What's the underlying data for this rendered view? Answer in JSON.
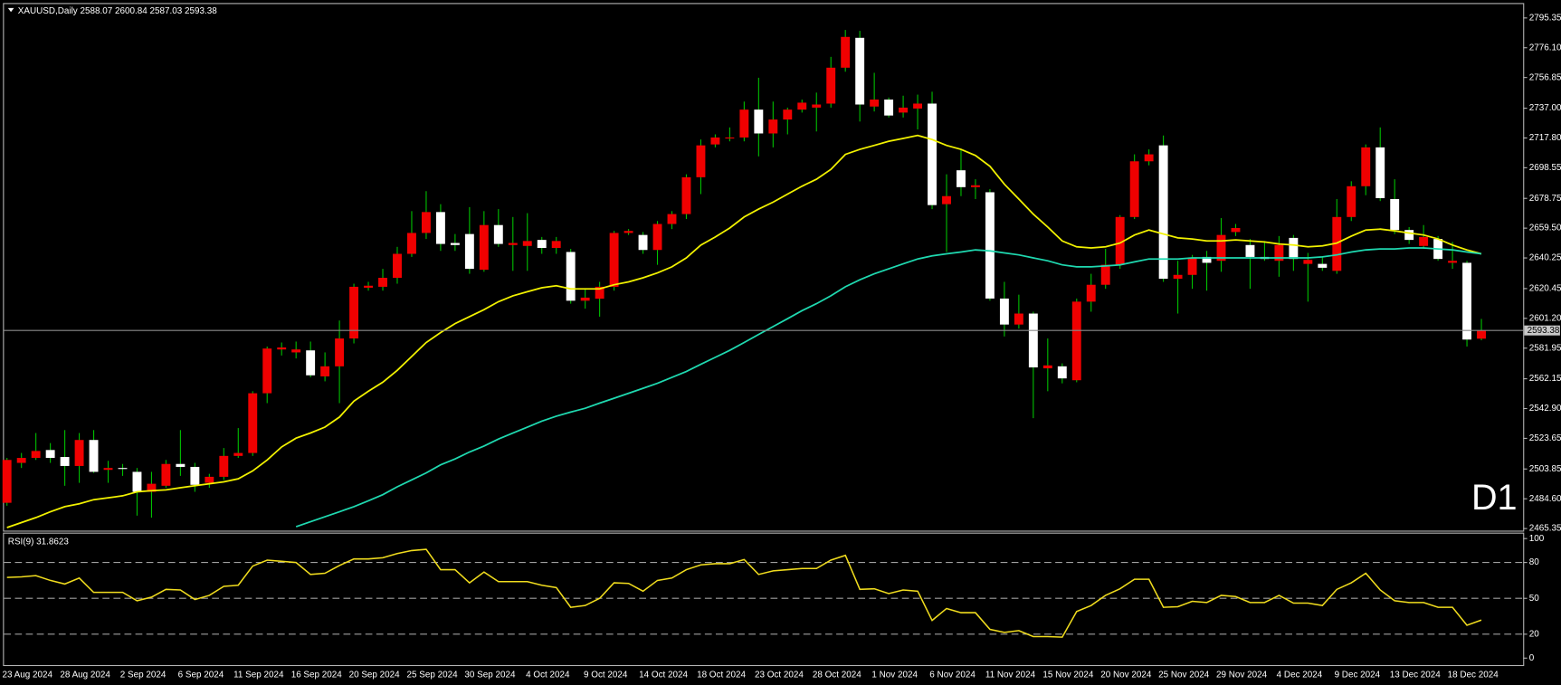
{
  "chart_data": [
    {
      "type": "candlestick",
      "title": "XAUUSD,Daily",
      "timeframe_label": "D1",
      "categories": [
        null,
        "23 Aug 2024",
        null,
        null,
        null,
        "28 Aug 2024",
        null,
        null,
        null,
        "2 Sep 2024",
        null,
        null,
        null,
        "6 Sep 2024",
        null,
        null,
        null,
        "11 Sep 2024",
        null,
        null,
        null,
        "16 Sep 2024",
        null,
        null,
        null,
        "20 Sep 2024",
        null,
        null,
        null,
        "25 Sep 2024",
        null,
        null,
        null,
        "30 Sep 2024",
        null,
        null,
        null,
        "4 Oct 2024",
        null,
        null,
        null,
        "9 Oct 2024",
        null,
        null,
        null,
        "14 Oct 2024",
        null,
        null,
        null,
        "18 Oct 2024",
        null,
        null,
        null,
        "23 Oct 2024",
        null,
        null,
        null,
        "28 Oct 2024",
        null,
        null,
        null,
        "1 Nov 2024",
        null,
        null,
        null,
        "6 Nov 2024",
        null,
        null,
        null,
        "11 Nov 2024",
        null,
        null,
        null,
        "15 Nov 2024",
        null,
        null,
        null,
        "20 Nov 2024",
        null,
        null,
        null,
        "25 Nov 2024",
        null,
        null,
        null,
        "29 Nov 2024",
        null,
        null,
        null,
        "4 Dec 2024",
        null,
        null,
        null,
        "9 Dec 2024",
        null,
        null,
        null,
        "13 Dec 2024",
        null,
        null,
        null,
        "18 Dec 2024",
        null
      ],
      "open": [
        2482.0,
        2507.8,
        2511.0,
        2516.1,
        2511.6,
        2505.8,
        2522.6,
        2503.3,
        2504.5,
        2502.0,
        2489.1,
        2493.0,
        2507.1,
        2505.2,
        2494.9,
        2498.8,
        2512.3,
        2514.2,
        2552.8,
        2581.1,
        2579.2,
        2580.5,
        2563.7,
        2570.2,
        2588.2,
        2621.0,
        2621.6,
        2627.4,
        2642.9,
        2656.4,
        2669.9,
        2649.9,
        2655.7,
        2632.6,
        2661.5,
        2648.6,
        2648.0,
        2651.9,
        2646.7,
        2644.1,
        2612.6,
        2613.9,
        2621.6,
        2656.4,
        2655.1,
        2645.4,
        2662.2,
        2668.6,
        2692.4,
        2713.6,
        2717.5,
        2718.1,
        2736.1,
        2720.7,
        2729.7,
        2736.1,
        2737.4,
        2740.0,
        2763.2,
        2782.5,
        2738.1,
        2742.6,
        2734.2,
        2736.8,
        2740.0,
        2675.0,
        2696.9,
        2686.0,
        2682.7,
        2614.0,
        2597.2,
        2604.3,
        2568.9,
        2570.2,
        2561.2,
        2612.0,
        2622.9,
        2635.8,
        2666.7,
        2702.7,
        2713.0,
        2626.8,
        2629.3,
        2640.9,
        2638.4,
        2657.0,
        2648.6,
        2640.9,
        2638.4,
        2653.2,
        2636.4,
        2636.4,
        2631.9,
        2666.7,
        2686.6,
        2711.7,
        2678.3,
        2658.3,
        2648.0,
        2652.5,
        2637.1,
        2637.1,
        2588.07
      ],
      "high": [
        2511.0,
        2514.2,
        2527.1,
        2520.6,
        2529.0,
        2527.1,
        2529.0,
        2509.1,
        2507.1,
        2504.5,
        2502.0,
        2509.7,
        2529.0,
        2507.8,
        2500.7,
        2517.4,
        2530.3,
        2554.1,
        2583.0,
        2585.6,
        2586.2,
        2586.2,
        2579.2,
        2599.8,
        2623.6,
        2624.8,
        2633.2,
        2647.4,
        2670.5,
        2683.4,
        2675.0,
        2655.7,
        2673.1,
        2670.5,
        2671.8,
        2666.7,
        2669.2,
        2653.8,
        2653.8,
        2646.1,
        2620.3,
        2624.8,
        2657.7,
        2658.9,
        2657.0,
        2664.1,
        2670.5,
        2694.3,
        2716.8,
        2720.1,
        2724.6,
        2741.3,
        2756.7,
        2741.3,
        2737.4,
        2742.6,
        2747.1,
        2770.2,
        2787.6,
        2787.0,
        2759.9,
        2743.9,
        2745.1,
        2745.8,
        2747.7,
        2694.3,
        2710.4,
        2691.1,
        2684.7,
        2624.8,
        2616.5,
        2605.5,
        2588.2,
        2572.1,
        2614.0,
        2630.0,
        2646.1,
        2667.9,
        2707.2,
        2710.4,
        2719.4,
        2638.4,
        2642.2,
        2644.8,
        2666.0,
        2662.2,
        2652.5,
        2651.2,
        2654.4,
        2655.1,
        2643.5,
        2640.9,
        2678.3,
        2689.8,
        2713.6,
        2724.6,
        2691.1,
        2660.2,
        2661.5,
        2654.4,
        2650.6,
        2638.4,
        2600.84
      ],
      "low": [
        2480.1,
        2504.5,
        2509.7,
        2507.8,
        2493.0,
        2494.9,
        2501.3,
        2494.9,
        2499.4,
        2473.7,
        2472.4,
        2491.7,
        2499.4,
        2489.1,
        2491.7,
        2496.8,
        2511.0,
        2512.3,
        2546.4,
        2577.2,
        2575.3,
        2563.1,
        2560.5,
        2546.4,
        2585.0,
        2619.1,
        2619.1,
        2623.6,
        2640.9,
        2652.5,
        2644.8,
        2644.8,
        2630.0,
        2631.3,
        2647.4,
        2631.9,
        2631.9,
        2642.9,
        2642.9,
        2610.7,
        2607.5,
        2602.3,
        2619.1,
        2655.1,
        2642.9,
        2635.8,
        2658.9,
        2665.4,
        2681.5,
        2711.7,
        2715.6,
        2715.6,
        2705.9,
        2711.7,
        2720.1,
        2734.2,
        2722.0,
        2737.4,
        2760.6,
        2728.4,
        2734.9,
        2731.0,
        2731.0,
        2723.3,
        2671.8,
        2644.1,
        2680.2,
        2678.3,
        2612.6,
        2589.5,
        2594.6,
        2536.7,
        2554.1,
        2559.2,
        2559.9,
        2605.5,
        2620.3,
        2633.2,
        2665.4,
        2700.1,
        2624.8,
        2604.3,
        2620.3,
        2619.1,
        2631.3,
        2654.4,
        2620.3,
        2638.4,
        2628.1,
        2631.9,
        2612.0,
        2631.9,
        2630.0,
        2664.1,
        2680.8,
        2677.0,
        2655.7,
        2649.3,
        2646.1,
        2638.4,
        2633.2,
        2583.0,
        2587.03
      ],
      "close": [
        2509.7,
        2511.0,
        2515.5,
        2511.0,
        2505.8,
        2522.6,
        2502.0,
        2504.5,
        2503.9,
        2489.1,
        2494.3,
        2507.1,
        2505.2,
        2493.6,
        2498.8,
        2512.3,
        2514.2,
        2552.8,
        2581.7,
        2582.4,
        2581.1,
        2564.4,
        2570.2,
        2588.2,
        2621.6,
        2622.3,
        2627.4,
        2642.9,
        2656.4,
        2669.9,
        2649.3,
        2648.6,
        2633.2,
        2661.5,
        2649.3,
        2649.9,
        2651.2,
        2646.7,
        2651.2,
        2612.6,
        2614.6,
        2621.6,
        2656.4,
        2657.7,
        2645.4,
        2662.2,
        2668.6,
        2692.4,
        2713.0,
        2718.1,
        2718.1,
        2736.1,
        2720.7,
        2729.7,
        2736.1,
        2740.6,
        2739.4,
        2763.2,
        2783.1,
        2739.4,
        2742.6,
        2732.3,
        2737.4,
        2740.0,
        2674.4,
        2680.2,
        2686.0,
        2687.2,
        2614.0,
        2597.2,
        2604.3,
        2569.5,
        2570.8,
        2562.4,
        2612.0,
        2622.9,
        2635.8,
        2666.7,
        2702.7,
        2707.2,
        2626.8,
        2629.3,
        2640.3,
        2637.1,
        2655.1,
        2659.6,
        2640.9,
        2639.6,
        2648.6,
        2639.6,
        2639.0,
        2633.9,
        2666.7,
        2686.6,
        2711.7,
        2678.9,
        2658.3,
        2651.9,
        2653.8,
        2639.6,
        2638.4,
        2587.5,
        2593.38
      ],
      "overlays": [
        {
          "color": "#f2f200",
          "values": [
            2466.0,
            2469.2,
            2472.4,
            2476.2,
            2479.5,
            2481.4,
            2484.0,
            2485.2,
            2486.5,
            2489.1,
            2489.8,
            2490.4,
            2491.7,
            2493.0,
            2494.3,
            2495.5,
            2497.5,
            2502.6,
            2509.7,
            2518.1,
            2523.8,
            2527.1,
            2530.9,
            2537.4,
            2547.7,
            2554.1,
            2559.9,
            2567.6,
            2576.6,
            2585.6,
            2592.0,
            2597.8,
            2602.3,
            2606.8,
            2612.0,
            2615.8,
            2618.4,
            2621.0,
            2622.3,
            2620.3,
            2620.3,
            2620.3,
            2622.9,
            2624.8,
            2627.4,
            2630.6,
            2634.5,
            2640.3,
            2648.6,
            2653.8,
            2659.6,
            2666.7,
            2671.8,
            2676.3,
            2681.5,
            2686.6,
            2691.1,
            2697.5,
            2707.2,
            2710.4,
            2713.0,
            2715.6,
            2717.5,
            2719.4,
            2716.8,
            2713.0,
            2710.4,
            2706.5,
            2699.5,
            2687.9,
            2678.3,
            2668.6,
            2660.2,
            2651.2,
            2647.4,
            2646.7,
            2647.4,
            2649.9,
            2655.1,
            2658.3,
            2655.7,
            2653.2,
            2652.5,
            2651.2,
            2651.2,
            2651.9,
            2651.2,
            2650.6,
            2649.3,
            2648.6,
            2647.4,
            2648.0,
            2649.9,
            2654.4,
            2658.3,
            2658.9,
            2657.7,
            2656.4,
            2655.1,
            2652.5,
            2648.6,
            2645.4,
            2642.9
          ]
        },
        {
          "color": "#1fd9b0",
          "values": [
            null,
            null,
            null,
            null,
            null,
            null,
            null,
            null,
            null,
            null,
            null,
            null,
            null,
            null,
            null,
            null,
            null,
            null,
            null,
            null,
            2466.6,
            2469.8,
            2473.0,
            2476.2,
            2479.5,
            2483.3,
            2487.2,
            2492.3,
            2496.8,
            2501.3,
            2506.5,
            2510.3,
            2514.8,
            2518.7,
            2523.2,
            2527.1,
            2530.9,
            2534.8,
            2538.0,
            2540.6,
            2543.1,
            2546.4,
            2549.6,
            2552.8,
            2556.0,
            2559.2,
            2563.1,
            2566.9,
            2571.5,
            2576.0,
            2580.5,
            2585.6,
            2590.8,
            2595.9,
            2601.0,
            2606.2,
            2610.7,
            2615.8,
            2621.6,
            2626.1,
            2630.0,
            2633.2,
            2636.4,
            2639.6,
            2641.6,
            2642.9,
            2644.1,
            2645.4,
            2644.8,
            2643.5,
            2642.2,
            2640.3,
            2638.4,
            2635.8,
            2634.5,
            2634.5,
            2635.1,
            2635.8,
            2637.7,
            2639.6,
            2639.6,
            2639.6,
            2640.3,
            2640.3,
            2640.3,
            2640.3,
            2640.3,
            2640.3,
            2640.3,
            2640.3,
            2640.3,
            2640.9,
            2642.2,
            2644.1,
            2645.4,
            2646.1,
            2646.1,
            2646.7,
            2646.7,
            2646.1,
            2645.4,
            2644.1,
            2642.9
          ]
        }
      ],
      "up_color": "#f00000",
      "down_color": "#ffffff",
      "wick_color": "#00c000",
      "price_line_color": "#8c8c8c",
      "ylim": [
        2464.0,
        2803.7
      ],
      "yticks": [
        2795.35,
        {
          "value": 2776.1,
          "label": "2776.10"
        },
        2756.85,
        {
          "value": 2737,
          "label": "2737.00"
        },
        {
          "value": 2717.8,
          "label": "2717.80"
        },
        2698.55,
        2678.75,
        {
          "value": 2659.5,
          "label": "2659.50"
        },
        2640.25,
        2620.45,
        {
          "value": 2601.2,
          "label": "2601.20"
        },
        2581.95,
        2562.15,
        {
          "value": 2542.9,
          "label": "2542.90"
        },
        2523.65,
        2503.85,
        {
          "value": 2484.6,
          "label": "2484.60"
        },
        2465.35
      ]
    },
    {
      "type": "line",
      "title": "RSI(9)",
      "color": "#f0dc1e",
      "values": [
        67.5,
        68,
        69,
        65,
        62,
        67,
        55,
        55,
        55,
        48,
        51,
        57.5,
        57,
        49,
        52.5,
        60,
        61,
        77,
        82,
        81,
        80,
        70,
        71,
        77.5,
        83,
        83,
        84,
        87.5,
        90,
        91,
        74,
        74,
        63,
        72,
        64,
        64,
        64,
        61,
        59,
        42.5,
        44,
        50,
        63,
        62.5,
        56,
        65,
        67,
        74,
        78,
        79,
        79,
        82.5,
        70,
        73,
        74,
        75,
        75,
        82,
        86,
        57.5,
        58,
        54,
        57,
        56,
        31.5,
        41.5,
        38,
        38,
        24,
        21.5,
        23,
        18,
        18,
        17.5,
        39,
        44,
        52.5,
        58,
        66,
        66,
        42.5,
        43,
        47.5,
        46.5,
        52.5,
        51.5,
        46.5,
        46.5,
        52.5,
        46,
        46,
        44,
        57.5,
        63,
        71,
        57,
        48,
        46.5,
        46.5,
        42.5,
        42.5,
        27.5,
        31.8623
      ],
      "ylim": [
        -5.8,
        103.3
      ],
      "yticks": [
        100,
        80,
        50,
        20,
        0
      ],
      "levels": [
        80,
        50,
        20
      ]
    }
  ]
}
